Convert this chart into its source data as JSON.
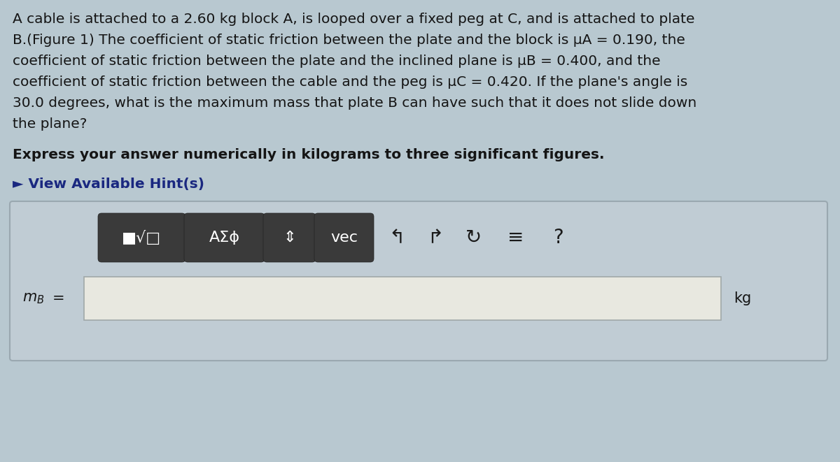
{
  "bg_color": "#b8c8d0",
  "outer_box_bg": "#c0ccd4",
  "outer_box_edge": "#9aa8b0",
  "main_text_lines": [
    "A cable is attached to a 2.60 kg block A, is looped over a fixed peg at C, and is attached to plate",
    "B.(Figure 1) The coefficient of static friction between the plate and the block is μA = 0.190, the",
    "coefficient of static friction between the plate and the inclined plane is μB = 0.400, and the",
    "coefficient of static friction between the cable and the peg is μC = 0.420. If the plane's angle is",
    "30.0 degrees, what is the maximum mass that plate B can have such that it does not slide down",
    "the plane?"
  ],
  "bold_text": "Express your answer numerically in kilograms to three significant figures.",
  "hint_text": "► View Available Hint(s)",
  "btn1_label": "■√̅□",
  "btn2_label": "AΣϕ",
  "btn3_label": "⇕",
  "btn4_label": "vec",
  "btn_color": "#3a3a3a",
  "btn_text_color": "#ffffff",
  "sym1": "↰",
  "sym2": "↱",
  "sym3": "↻",
  "sym4": "≡",
  "sym5": "?",
  "answer_label": "m",
  "answer_sub": "B",
  "answer_eq": "=",
  "answer_unit": "kg",
  "input_box_color": "#e8e8e0",
  "input_box_edge": "#a0a8a8",
  "text_color": "#151515",
  "hint_color": "#1a2880"
}
